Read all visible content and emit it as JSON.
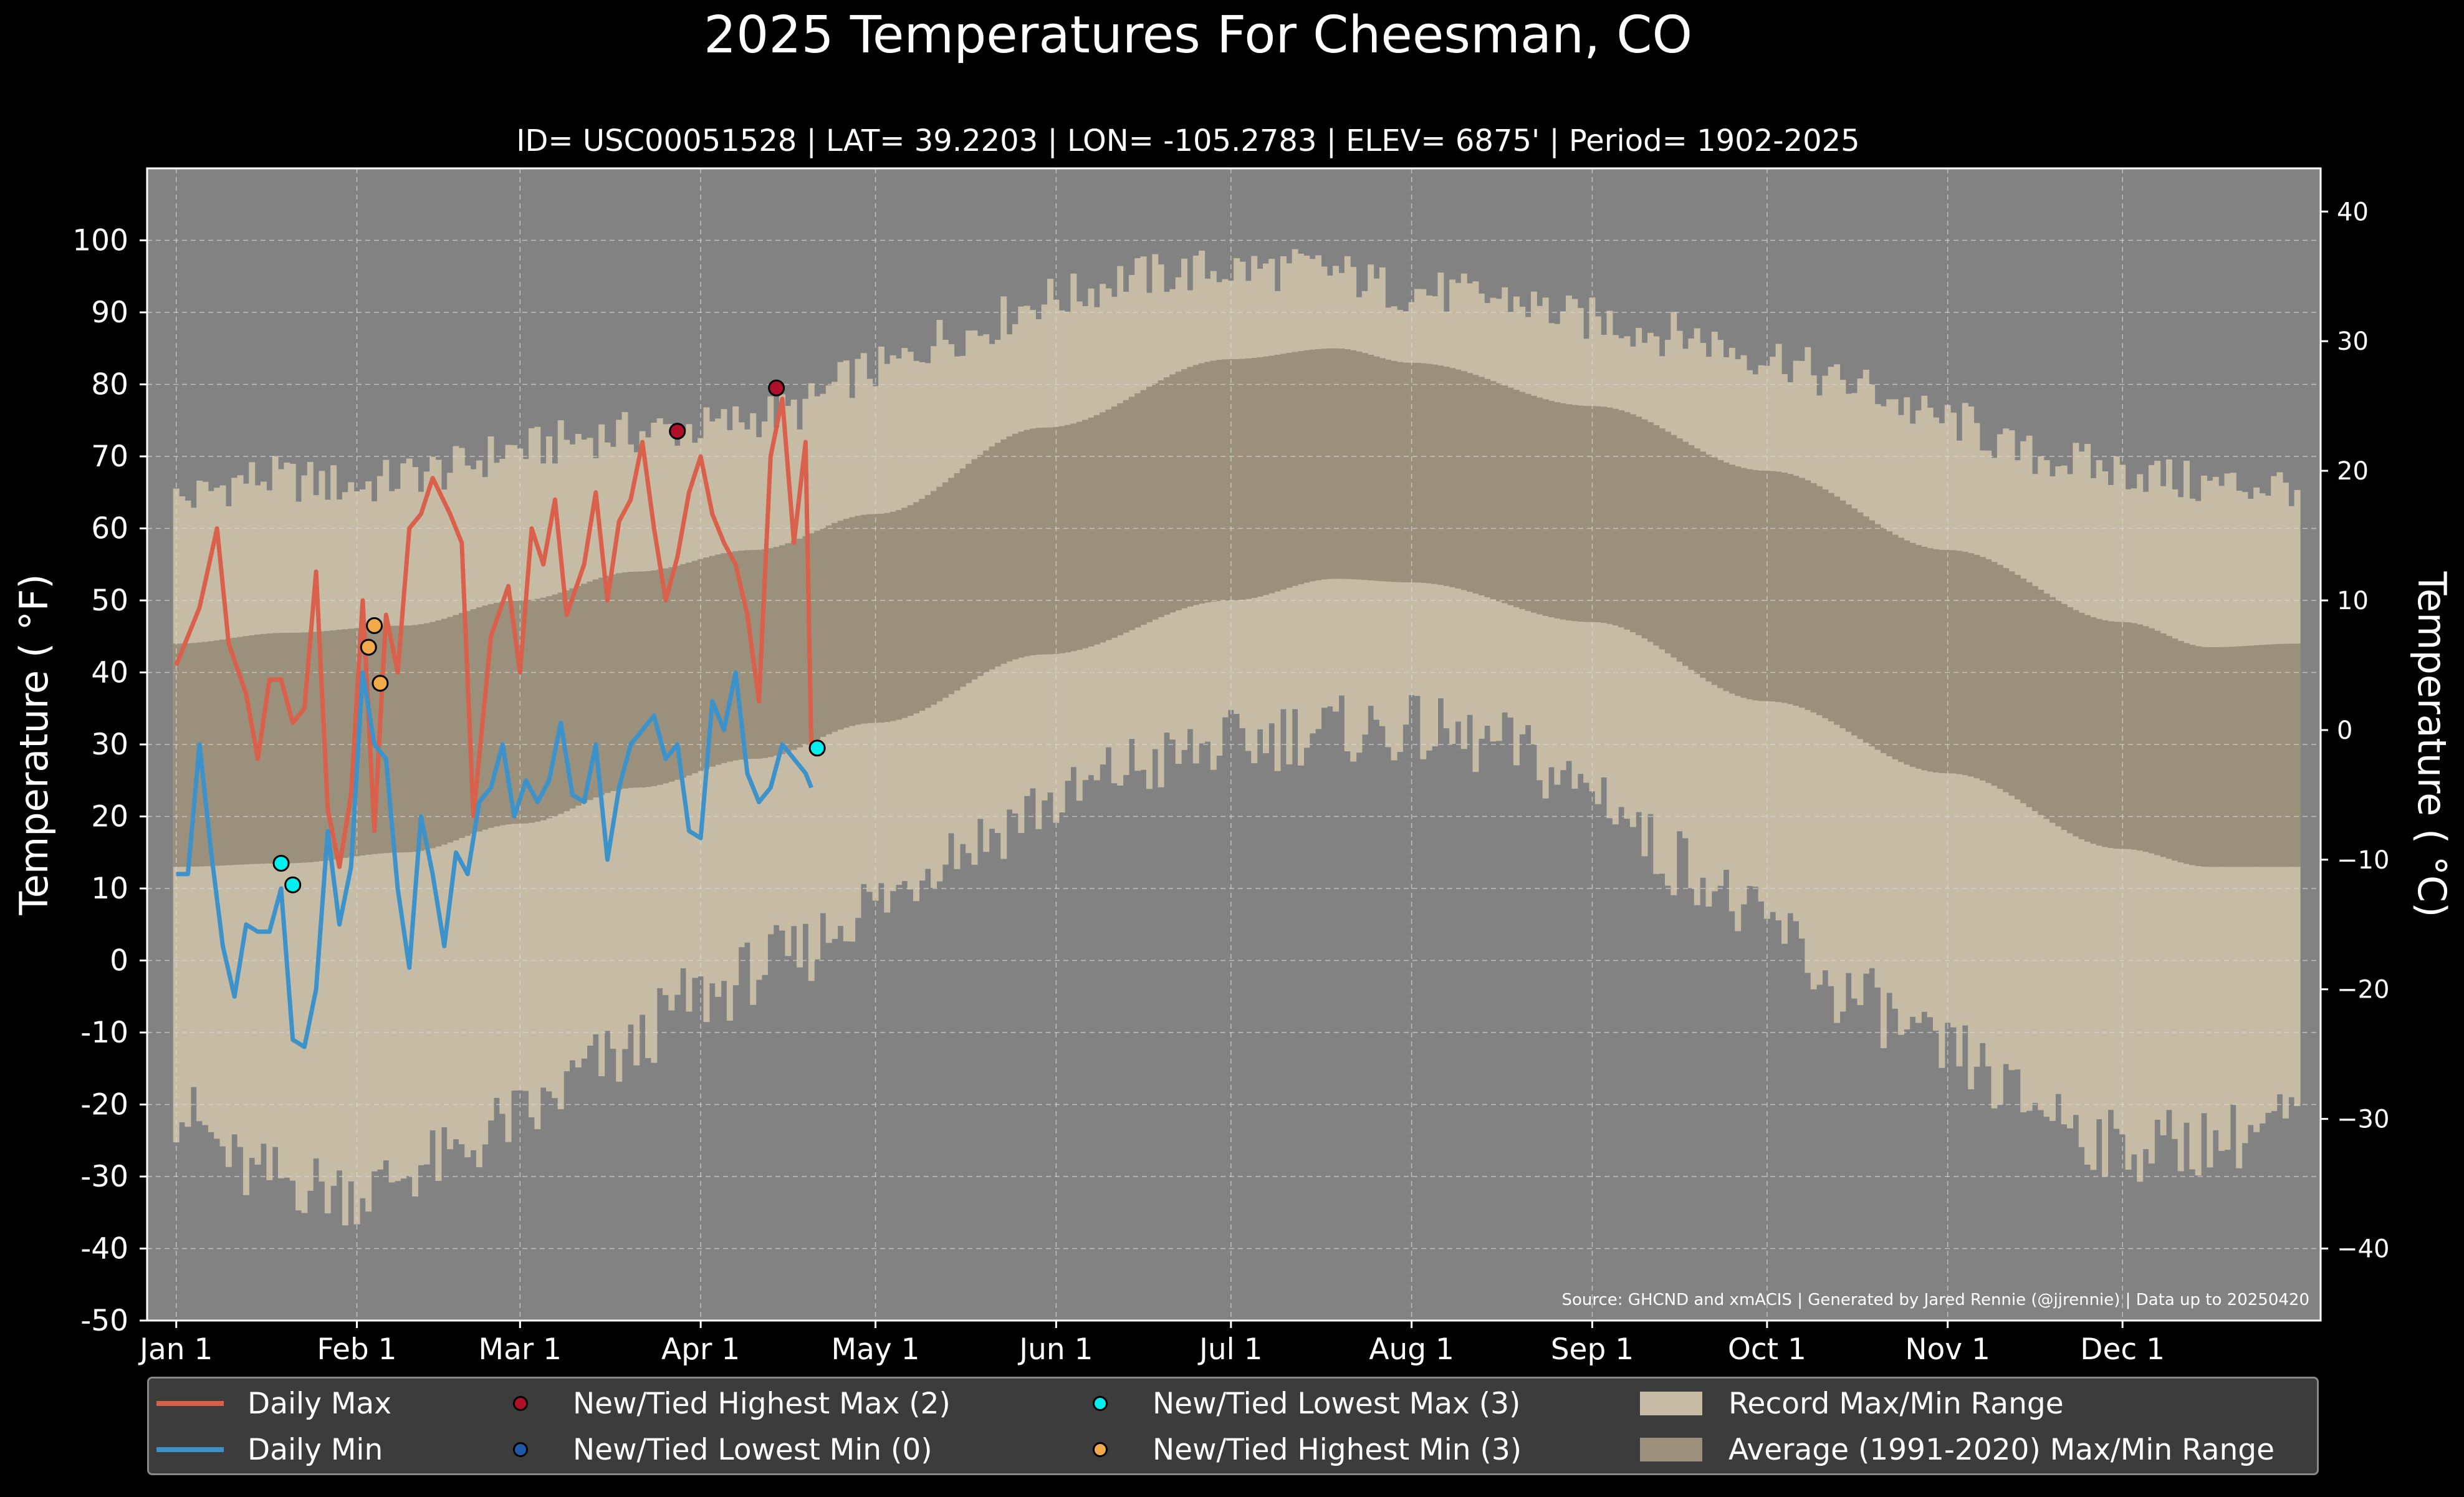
{
  "chart_data": {
    "type": "line",
    "title": "2025 Temperatures For Cheesman, CO",
    "subtitle": "ID= USC00051528 | LAT= 39.2203 | LON= -105.2783 | ELEV= 6875' | Period= 1902-2025",
    "ylabel": "Temperature ( $^\\circ$F)",
    "ylabel_display": "Temperature ( °F)",
    "y2label_display": "Temperature ( °C)",
    "ylim": [
      -50,
      110
    ],
    "yticks": [
      "100",
      "90",
      "80",
      "70",
      "60",
      "50",
      "40",
      "30",
      "20",
      "10",
      "0",
      "-10",
      "-20",
      "-30",
      "-40",
      "-50"
    ],
    "y2ticks": [
      "40",
      "30",
      "20",
      "10",
      "0",
      "−10",
      "−20",
      "−30",
      "−40"
    ],
    "xlim_day": [
      -4,
      369
    ],
    "xticks": [
      {
        "label": "Jan 1",
        "day": 1
      },
      {
        "label": "Feb 1",
        "day": 32
      },
      {
        "label": "Mar 1",
        "day": 60
      },
      {
        "label": "Apr 1",
        "day": 91
      },
      {
        "label": "May 1",
        "day": 121
      },
      {
        "label": "Jun 1",
        "day": 152
      },
      {
        "label": "Jul 1",
        "day": 182
      },
      {
        "label": "Aug 1",
        "day": 213
      },
      {
        "label": "Sep 1",
        "day": 244
      },
      {
        "label": "Oct 1",
        "day": 274
      },
      {
        "label": "Nov 1",
        "day": 305
      },
      {
        "label": "Dec 1",
        "day": 335
      }
    ],
    "grid": true,
    "source": "Source: GHCND and xmACIS | Generated by Jared Rennie (@jjrennie) | Data up to 20250420",
    "series": [
      {
        "name": "Daily Max",
        "color": "#d9604a",
        "days": [
          1,
          5,
          8,
          10,
          13,
          15,
          17,
          19,
          21,
          23,
          25,
          27,
          29,
          31,
          33,
          35,
          37,
          39,
          41,
          43,
          45,
          48,
          50,
          52,
          55,
          58,
          60,
          62,
          64,
          66,
          68,
          71,
          73,
          75,
          77,
          79,
          81,
          83,
          85,
          87,
          89,
          91,
          93,
          95,
          97,
          99,
          101,
          103,
          105,
          107,
          109,
          110
        ],
        "values": [
          41,
          49,
          60,
          44,
          37,
          28,
          39,
          39,
          33,
          35,
          54,
          21,
          13,
          23,
          50,
          18,
          48,
          40,
          60,
          62,
          67,
          62,
          58,
          20,
          45,
          52,
          40,
          60,
          55,
          64,
          48,
          55,
          65,
          50,
          61,
          64,
          72,
          60,
          50,
          56,
          65,
          70,
          62,
          58,
          55,
          48,
          36,
          70,
          78,
          58,
          72,
          29
        ]
      },
      {
        "name": "Daily Min",
        "color": "#3d93c9",
        "days": [
          1,
          3,
          5,
          7,
          9,
          11,
          13,
          15,
          17,
          19,
          21,
          23,
          25,
          27,
          29,
          31,
          33,
          35,
          37,
          39,
          41,
          43,
          45,
          47,
          49,
          51,
          53,
          55,
          57,
          59,
          61,
          63,
          65,
          67,
          69,
          71,
          73,
          75,
          77,
          79,
          81,
          83,
          85,
          87,
          89,
          91,
          93,
          95,
          97,
          99,
          101,
          103,
          105,
          107,
          109,
          110
        ],
        "values": [
          12,
          12,
          30,
          15,
          2,
          -5,
          5,
          4,
          4,
          10,
          -11,
          -12,
          -4,
          18,
          5,
          13,
          40,
          30,
          28,
          10,
          -1,
          20,
          12,
          2,
          15,
          12,
          22,
          24,
          30,
          20,
          25,
          22,
          25,
          33,
          23,
          22,
          30,
          14,
          24,
          30,
          32,
          34,
          28,
          30,
          18,
          17,
          36,
          32,
          40,
          26,
          22,
          24,
          30,
          28,
          26,
          24
        ]
      },
      {
        "name": "New/Tied Highest Max (2)",
        "color": "#b0102a",
        "points": [
          {
            "day": 87,
            "value": 73.5
          },
          {
            "day": 104,
            "value": 79.5
          }
        ]
      },
      {
        "name": "New/Tied Lowest Min (0)",
        "color": "#1f5aa8",
        "points": []
      },
      {
        "name": "New/Tied Lowest Max (3)",
        "color": "#00f0f0",
        "points": [
          {
            "day": 19,
            "value": 13.5
          },
          {
            "day": 21,
            "value": 10.5
          },
          {
            "day": 111,
            "value": 29.5
          }
        ]
      },
      {
        "name": "New/Tied Highest Min (3)",
        "color": "#f2a94a",
        "points": [
          {
            "day": 34,
            "value": 43.5
          },
          {
            "day": 35,
            "value": 46.5
          },
          {
            "day": 36,
            "value": 38.5
          }
        ]
      },
      {
        "name": "Record Max/Min Range",
        "color": "#c6bca6",
        "record_max_anchors": [
          [
            1,
            64
          ],
          [
            15,
            67
          ],
          [
            32,
            66
          ],
          [
            46,
            68
          ],
          [
            60,
            71
          ],
          [
            75,
            73
          ],
          [
            91,
            74
          ],
          [
            105,
            76
          ],
          [
            121,
            82
          ],
          [
            135,
            87
          ],
          [
            152,
            92
          ],
          [
            166,
            95
          ],
          [
            182,
            96
          ],
          [
            196,
            96
          ],
          [
            213,
            93
          ],
          [
            227,
            92
          ],
          [
            244,
            89
          ],
          [
            258,
            87
          ],
          [
            274,
            84
          ],
          [
            288,
            80
          ],
          [
            305,
            75
          ],
          [
            320,
            70
          ],
          [
            335,
            68
          ],
          [
            350,
            66
          ],
          [
            365,
            66
          ]
        ],
        "record_min_anchors": [
          [
            1,
            -21
          ],
          [
            15,
            -30
          ],
          [
            32,
            -32
          ],
          [
            46,
            -28
          ],
          [
            60,
            -22
          ],
          [
            75,
            -14
          ],
          [
            91,
            -5
          ],
          [
            105,
            0
          ],
          [
            121,
            8
          ],
          [
            135,
            16
          ],
          [
            152,
            22
          ],
          [
            166,
            27
          ],
          [
            182,
            30
          ],
          [
            196,
            32
          ],
          [
            213,
            32
          ],
          [
            227,
            30
          ],
          [
            244,
            24
          ],
          [
            258,
            14
          ],
          [
            274,
            5
          ],
          [
            288,
            -5
          ],
          [
            305,
            -13
          ],
          [
            320,
            -20
          ],
          [
            335,
            -26
          ],
          [
            350,
            -25
          ],
          [
            365,
            -22
          ]
        ]
      },
      {
        "name": "Average (1991-2020) Max/Min Range",
        "color": "#9b907c",
        "avg_max_anchors": [
          [
            1,
            44
          ],
          [
            20,
            45.5
          ],
          [
            40,
            46.5
          ],
          [
            60,
            50
          ],
          [
            80,
            54
          ],
          [
            100,
            57
          ],
          [
            121,
            62
          ],
          [
            150,
            74
          ],
          [
            182,
            83.5
          ],
          [
            200,
            85
          ],
          [
            213,
            83
          ],
          [
            244,
            77
          ],
          [
            274,
            68
          ],
          [
            305,
            57
          ],
          [
            335,
            47
          ],
          [
            350,
            43.5
          ],
          [
            365,
            44
          ]
        ],
        "avg_min_anchors": [
          [
            1,
            13
          ],
          [
            20,
            13.5
          ],
          [
            40,
            15
          ],
          [
            60,
            19
          ],
          [
            80,
            24
          ],
          [
            100,
            28
          ],
          [
            121,
            33
          ],
          [
            150,
            42.5
          ],
          [
            182,
            50
          ],
          [
            200,
            53
          ],
          [
            213,
            52.5
          ],
          [
            244,
            47
          ],
          [
            274,
            36
          ],
          [
            305,
            26
          ],
          [
            335,
            15.5
          ],
          [
            350,
            13
          ],
          [
            365,
            13
          ]
        ]
      }
    ]
  },
  "legend": {
    "daily_max": "Daily Max",
    "daily_min": "Daily Min",
    "new_highest_max": "New/Tied Highest Max (2)",
    "new_lowest_min": "New/Tied Lowest Min (0)",
    "new_lowest_max": "New/Tied Lowest Max (3)",
    "new_highest_min": "New/Tied Highest Min (3)",
    "record_range": "Record Max/Min Range",
    "average_range": "Average (1991-2020) Max/Min Range"
  },
  "colors": {
    "background": "#000000",
    "plot_background": "#828282",
    "record_range": "#c6bca6",
    "average_range": "#9b907c",
    "daily_max": "#d9604a",
    "daily_min": "#3d93c9",
    "legend_background": "#3c3c3c"
  }
}
